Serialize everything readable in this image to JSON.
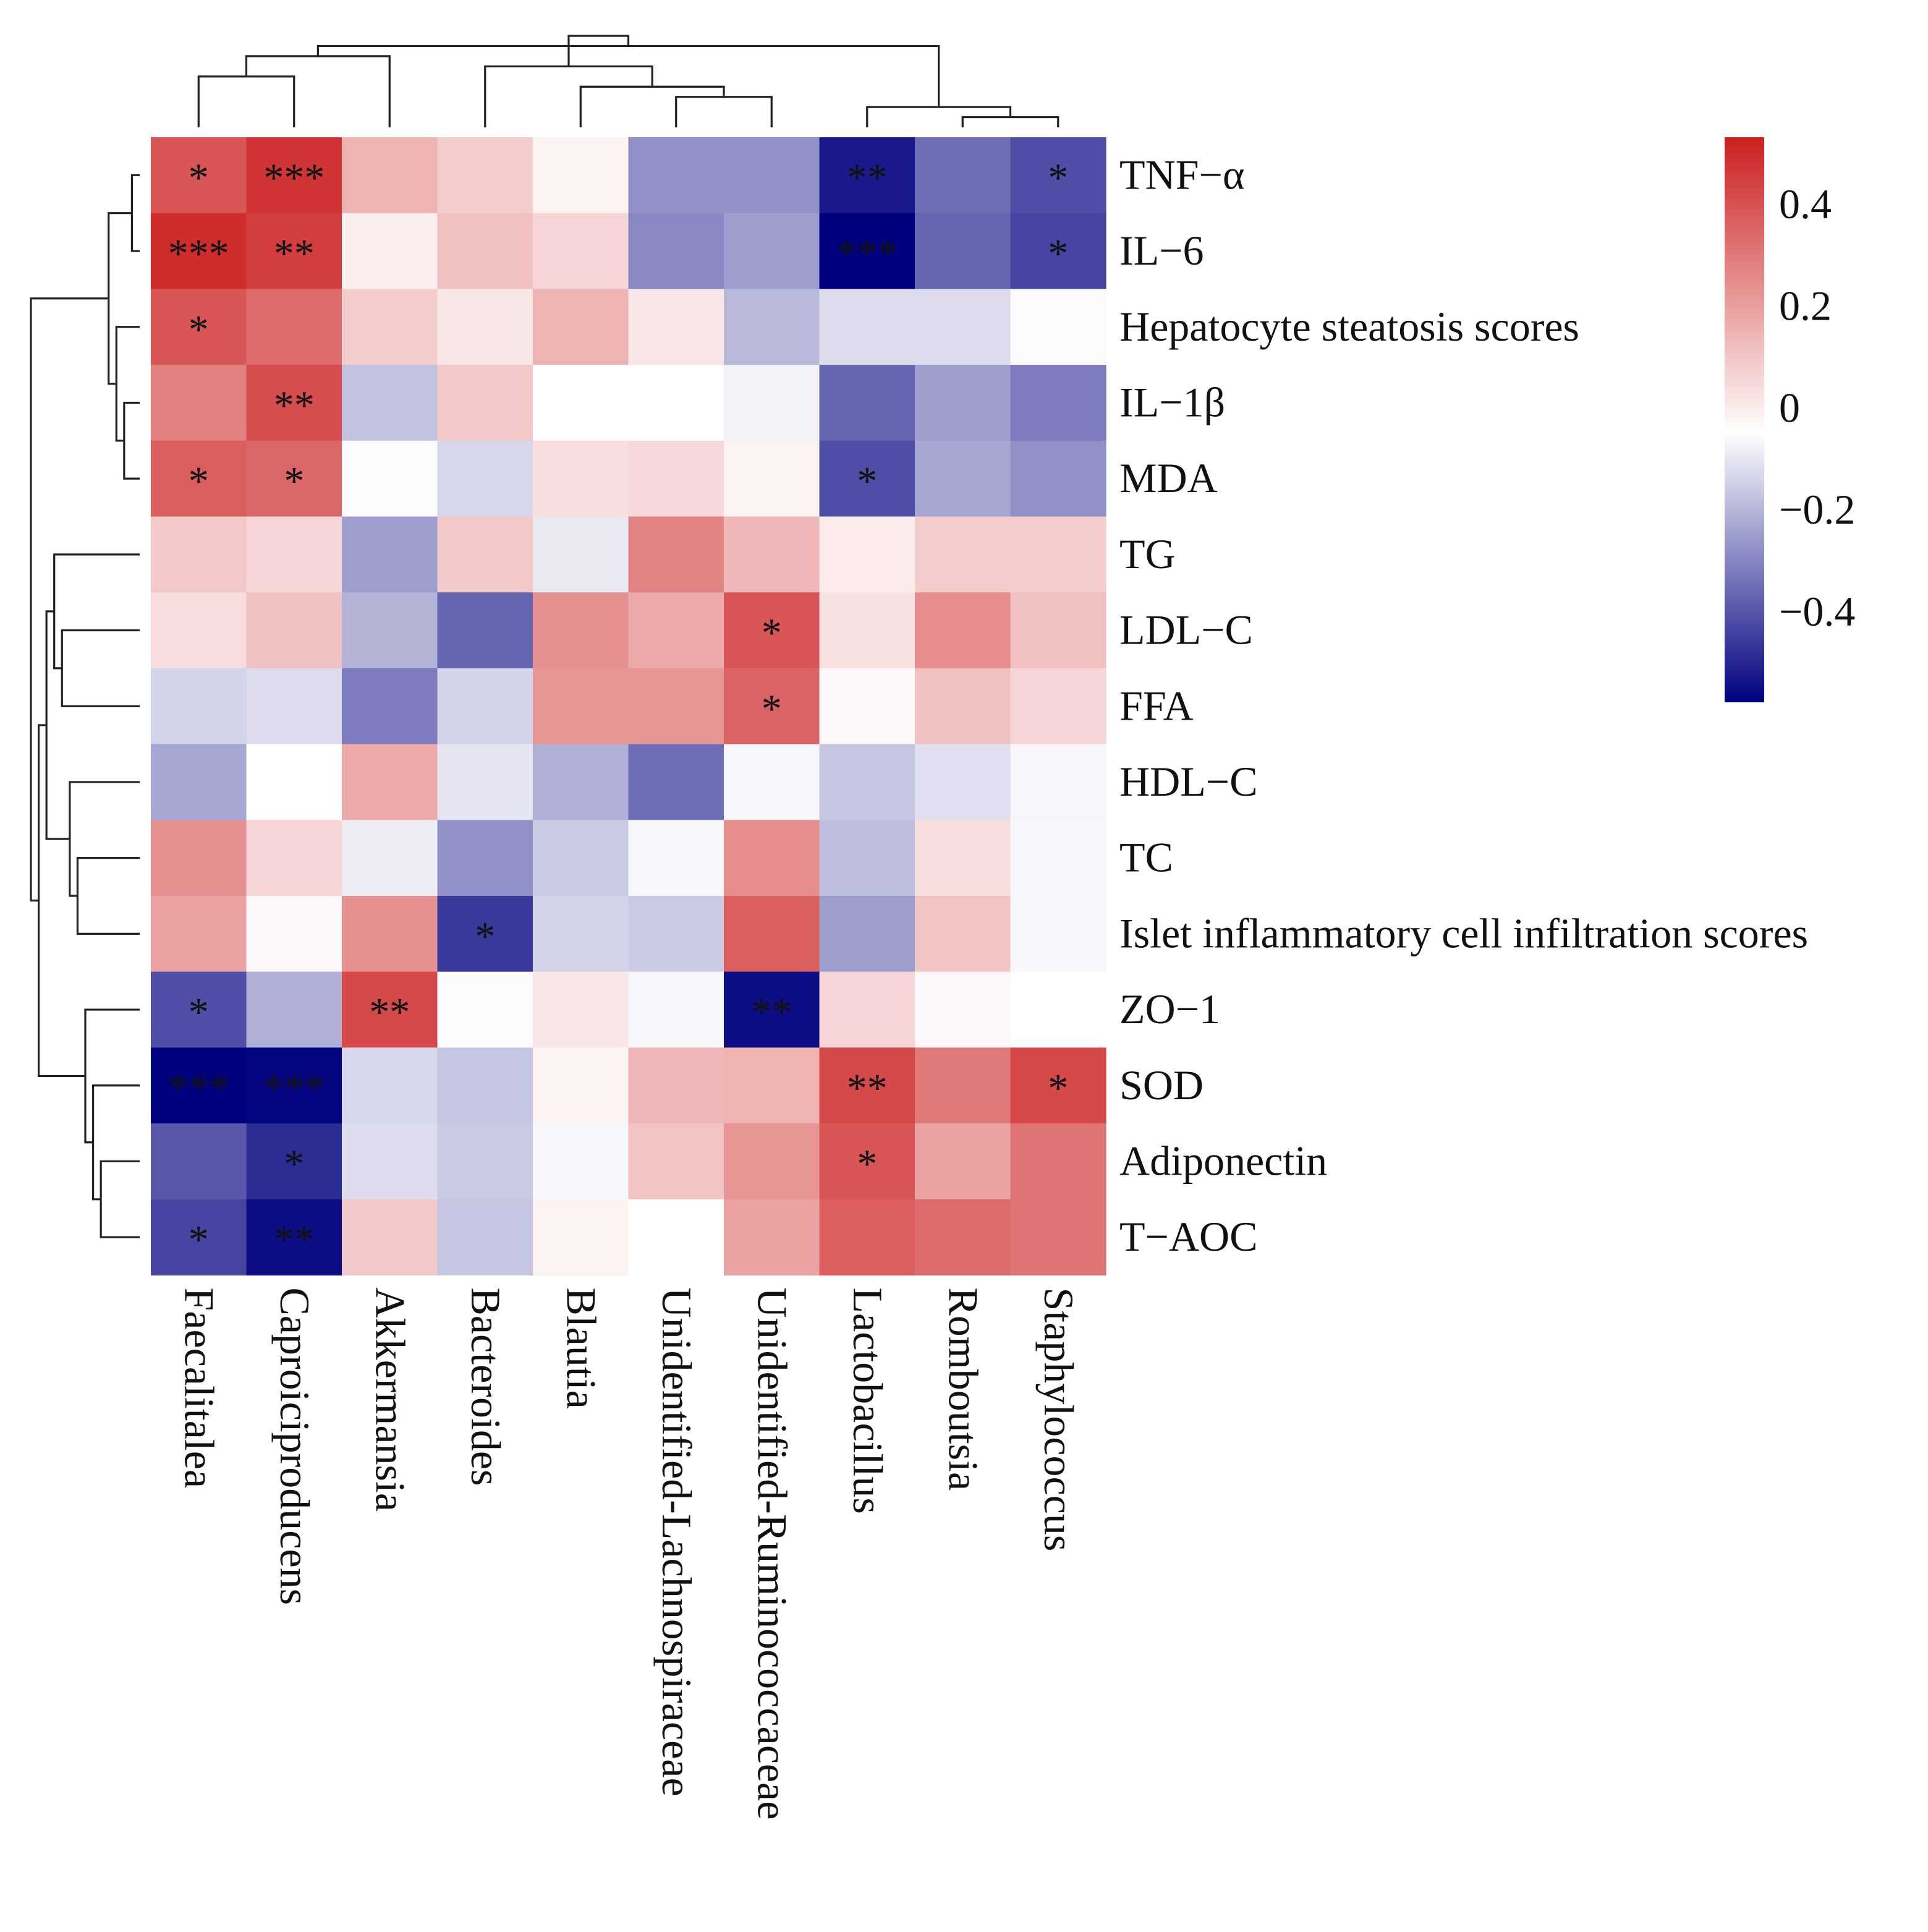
{
  "chart_data": {
    "type": "heatmap",
    "title": "",
    "xlabel": "",
    "ylabel": "",
    "columns": [
      "Faecalitalea",
      "Caproiciproducens",
      "Akkermansia",
      "Bacteroides",
      "Blautia",
      "Unidentified-Lachnospiraceae",
      "Unidentified-Ruminococcaceae",
      "Lactobacillus",
      "Romboutsia",
      "Staphylococcus"
    ],
    "rows": [
      "TNF−α",
      "IL−6",
      "Hepatocyte steatosis scores",
      "IL−1β",
      "MDA",
      "TG",
      "LDL−C",
      "FFA",
      "HDL−C",
      "TC",
      "Islet inflammatory cell infiltration scores",
      "ZO−1",
      "SOD",
      "Adiponectin",
      "T−AOC"
    ],
    "values": [
      [
        0.4,
        0.48,
        0.18,
        0.12,
        0.03,
        -0.25,
        -0.25,
        -0.52,
        -0.33,
        -0.4
      ],
      [
        0.5,
        0.46,
        0.04,
        0.15,
        0.1,
        -0.27,
        -0.22,
        -0.58,
        -0.35,
        -0.42
      ],
      [
        0.4,
        0.35,
        0.12,
        0.06,
        0.18,
        0.06,
        -0.16,
        -0.08,
        -0.08,
        -0.01
      ],
      [
        0.3,
        0.42,
        -0.14,
        0.13,
        0.0,
        0.0,
        -0.03,
        -0.35,
        -0.22,
        -0.3
      ],
      [
        0.38,
        0.36,
        -0.01,
        -0.09,
        0.08,
        0.09,
        0.03,
        -0.4,
        -0.2,
        -0.25
      ],
      [
        0.13,
        0.1,
        -0.22,
        0.13,
        -0.05,
        0.29,
        0.17,
        0.05,
        0.12,
        0.12
      ],
      [
        0.08,
        0.15,
        -0.17,
        -0.35,
        0.26,
        0.2,
        0.4,
        0.07,
        0.27,
        0.15
      ],
      [
        -0.1,
        -0.08,
        -0.3,
        -0.1,
        0.25,
        0.25,
        0.37,
        0.02,
        0.15,
        0.1
      ],
      [
        -0.2,
        0.0,
        0.2,
        -0.06,
        -0.18,
        -0.33,
        -0.02,
        -0.13,
        -0.07,
        -0.02
      ],
      [
        0.26,
        0.1,
        -0.04,
        -0.25,
        -0.12,
        -0.02,
        0.27,
        -0.15,
        0.08,
        -0.02
      ],
      [
        0.22,
        0.02,
        0.26,
        -0.45,
        -0.1,
        -0.12,
        0.38,
        -0.22,
        0.14,
        -0.02
      ],
      [
        -0.4,
        -0.18,
        0.43,
        -0.01,
        0.06,
        -0.02,
        -0.55,
        0.1,
        0.02,
        0.0
      ],
      [
        -0.58,
        -0.57,
        -0.09,
        -0.13,
        0.03,
        0.17,
        0.18,
        0.43,
        0.32,
        0.43
      ],
      [
        -0.38,
        -0.48,
        -0.08,
        -0.12,
        -0.02,
        0.14,
        0.25,
        0.4,
        0.22,
        0.33
      ],
      [
        -0.42,
        -0.55,
        0.13,
        -0.13,
        0.03,
        0.0,
        0.22,
        0.38,
        0.35,
        0.33
      ]
    ],
    "significance": [
      [
        "*",
        "***",
        "",
        "",
        "",
        "",
        "",
        "**",
        "",
        "*"
      ],
      [
        "***",
        "**",
        "",
        "",
        "",
        "",
        "",
        "***",
        "",
        "*"
      ],
      [
        "*",
        "",
        "",
        "",
        "",
        "",
        "",
        "",
        "",
        ""
      ],
      [
        "",
        "**",
        "",
        "",
        "",
        "",
        "",
        "",
        "",
        ""
      ],
      [
        "*",
        "*",
        "",
        "",
        "",
        "",
        "",
        "*",
        "",
        ""
      ],
      [
        "",
        "",
        "",
        "",
        "",
        "",
        "",
        "",
        "",
        ""
      ],
      [
        "",
        "",
        "",
        "",
        "",
        "",
        "*",
        "",
        "",
        ""
      ],
      [
        "",
        "",
        "",
        "",
        "",
        "",
        "*",
        "",
        "",
        ""
      ],
      [
        "",
        "",
        "",
        "",
        "",
        "",
        "",
        "",
        "",
        ""
      ],
      [
        "",
        "",
        "",
        "",
        "",
        "",
        "",
        "",
        "",
        ""
      ],
      [
        "",
        "",
        "",
        "*",
        "",
        "",
        "",
        "",
        "",
        ""
      ],
      [
        "*",
        "",
        "**",
        "",
        "",
        "",
        "**",
        "",
        "",
        ""
      ],
      [
        "***",
        "***",
        "",
        "",
        "",
        "",
        "",
        "**",
        "",
        "*"
      ],
      [
        "",
        "*",
        "",
        "",
        "",
        "",
        "",
        "*",
        "",
        ""
      ],
      [
        "*",
        "**",
        "",
        "",
        "",
        "",
        "",
        "",
        "",
        ""
      ]
    ],
    "colorbar": {
      "range": [
        -0.58,
        0.53
      ],
      "ticks": [
        0.4,
        0.2,
        0,
        -0.2,
        -0.4
      ],
      "tick_labels": [
        "0.4",
        "0.2",
        "0",
        "−0.2",
        "−0.4"
      ],
      "colors": {
        "low": "#00007f",
        "mid": "#ffffff",
        "high": "#cc1f1f"
      }
    },
    "column_dendrogram": [
      [
        8,
        9
      ],
      [
        7,
        10
      ],
      [
        5,
        6
      ],
      [
        4,
        12
      ],
      [
        0,
        1
      ],
      [
        3,
        13
      ],
      [
        2,
        14
      ],
      [
        11,
        16
      ],
      [
        15,
        17
      ]
    ],
    "row_dendrogram": [
      [
        0,
        1
      ],
      [
        3,
        4
      ],
      [
        2,
        16
      ],
      [
        15,
        17
      ],
      [
        13,
        14
      ],
      [
        12,
        19
      ],
      [
        11,
        20
      ],
      [
        9,
        10
      ],
      [
        8,
        22
      ],
      [
        6,
        7
      ],
      [
        5,
        24
      ],
      [
        23,
        25
      ],
      [
        21,
        26
      ],
      [
        18,
        27
      ]
    ],
    "grid": false,
    "legend": "right"
  }
}
